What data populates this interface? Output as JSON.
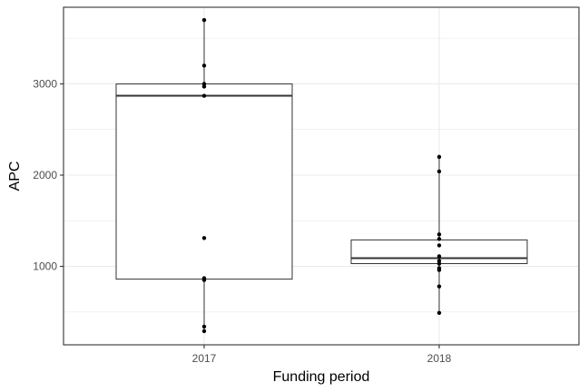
{
  "chart_data": {
    "type": "boxplot",
    "xlabel": "Funding period",
    "ylabel": "APC",
    "categories": [
      "2017",
      "2018"
    ],
    "ylim": [
      140,
      3840
    ],
    "yticks": [
      1000,
      2000,
      3000
    ],
    "ytick_labels": [
      "1000",
      "2000",
      "3000"
    ],
    "grid": true,
    "colors": {
      "box": "#333333",
      "point": "#000000",
      "grid": "#ebebeb",
      "panel_border": "#333333"
    },
    "boxes": [
      {
        "category": "2017",
        "lower_whisker": 290,
        "q1": 860,
        "median": 2870,
        "q3": 3000,
        "upper_whisker": 3700
      },
      {
        "category": "2018",
        "lower_whisker": 480,
        "q1": 1030,
        "median": 1090,
        "q3": 1290,
        "upper_whisker": 2200
      }
    ],
    "points": [
      {
        "category": "2017",
        "values": [
          3700,
          3200,
          3000,
          2970,
          2870,
          1310,
          870,
          850,
          340,
          290
        ]
      },
      {
        "category": "2018",
        "values": [
          2200,
          2040,
          1350,
          1300,
          1230,
          1110,
          1060,
          1030,
          980,
          960,
          780,
          490
        ]
      }
    ]
  }
}
